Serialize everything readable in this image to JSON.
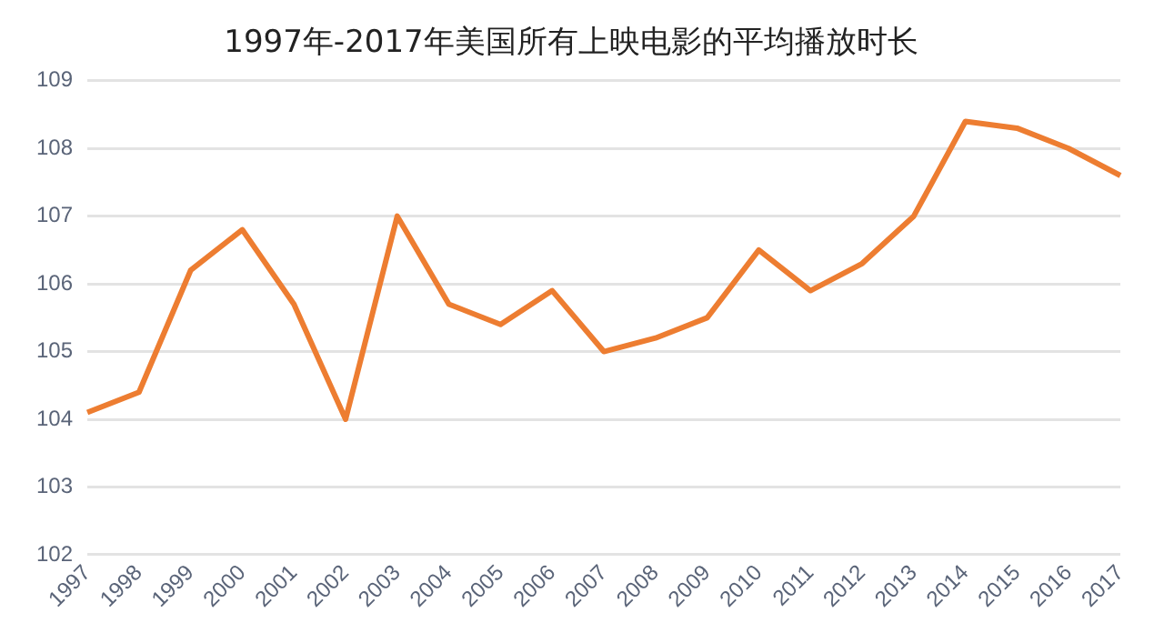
{
  "chart_data": {
    "type": "line",
    "title": "1997年-2017年美国所有上映电影的平均播放时长",
    "categories": [
      "1997",
      "1998",
      "1999",
      "2000",
      "2001",
      "2002",
      "2003",
      "2004",
      "2005",
      "2006",
      "2007",
      "2008",
      "2009",
      "2010",
      "2011",
      "2012",
      "2013",
      "2014",
      "2015",
      "2016",
      "2017"
    ],
    "series": [
      {
        "color": "#ed7d31",
        "values": [
          104.1,
          104.4,
          106.2,
          106.8,
          105.7,
          104.0,
          107.0,
          105.7,
          105.4,
          105.9,
          105.0,
          105.2,
          105.5,
          106.5,
          105.9,
          106.3,
          107.0,
          108.4,
          108.3,
          108.0,
          107.6
        ]
      }
    ],
    "ylim": [
      102,
      109
    ],
    "yticks": [
      102,
      103,
      104,
      105,
      106,
      107,
      108,
      109
    ],
    "grid": "y",
    "legend": false,
    "marker": "none",
    "line_style": "solid"
  }
}
